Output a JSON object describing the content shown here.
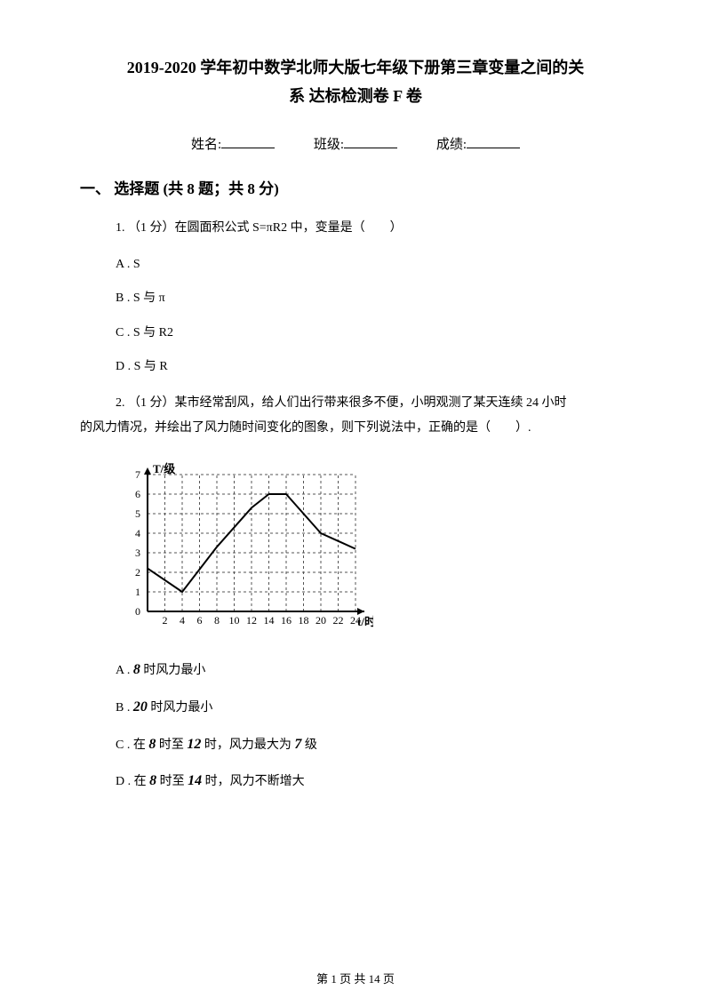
{
  "title_line1": "2019-2020 学年初中数学北师大版七年级下册第三章变量之间的关",
  "title_line2": "系 达标检测卷 F 卷",
  "form": {
    "name_label": "姓名:",
    "class_label": "班级:",
    "score_label": "成绩:"
  },
  "section1_heading": "一、 选择题 (共 8 题；共 8 分)",
  "q1": {
    "text": "1.  （1 分）在圆面积公式 S=πR2 中，变量是（　　）",
    "optA": "A .  S",
    "optB": "B .  S 与 π",
    "optC": "C .  S 与 R2",
    "optD": "D .  S 与 R"
  },
  "q2": {
    "line1": "2.  （1 分）某市经常刮风，给人们出行带来很多不便，小明观测了某天连续  24  小时",
    "line2": "的风力情况，并绘出了风力随时间变化的图象，则下列说法中，正确的是（　　）.",
    "optA_pre": "A .  ",
    "optA_num": "8",
    "optA_post": "  时风力最小",
    "optB_pre": "B .  ",
    "optB_num": "20",
    "optB_post": "  时风力最小",
    "optC_pre": "C .  在 ",
    "optC_n1": "8",
    "optC_mid1": " 时至 ",
    "optC_n2": "12",
    "optC_mid2": " 时，风力最大为 ",
    "optC_n3": "7",
    "optC_post": " 级",
    "optD_pre": "D .  在 ",
    "optD_n1": "8",
    "optD_mid1": " 时至 ",
    "optD_n2": "14",
    "optD_post": " 时，风力不断增大"
  },
  "chart": {
    "y_label": "T/级",
    "x_label": "t/时",
    "y_ticks": [
      "0",
      "1",
      "2",
      "3",
      "4",
      "5",
      "6",
      "7"
    ],
    "x_ticks": [
      "2",
      "4",
      "6",
      "8",
      "10",
      "12",
      "14",
      "16",
      "18",
      "20",
      "22",
      "24"
    ],
    "ylim": [
      0,
      7
    ],
    "xlim": [
      0,
      24
    ],
    "grid_dash": "3,3",
    "grid_color": "#555555",
    "axis_color": "#000000",
    "line_color": "#000000",
    "line_width": 2,
    "background": "#ffffff",
    "points_t": [
      0,
      4,
      8,
      12,
      14,
      16,
      20,
      24
    ],
    "points_y": [
      2.2,
      1,
      3.3,
      5.3,
      6,
      6,
      4,
      3.2
    ],
    "font_size": 12
  },
  "footer": "第 1 页 共 14 页"
}
